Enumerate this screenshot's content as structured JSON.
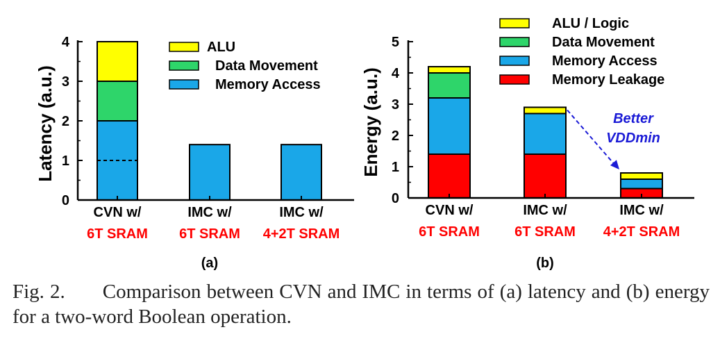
{
  "chart_data": [
    {
      "type": "bar",
      "stacked": true,
      "panel_label": "(a)",
      "ylabel": "Latency (a.u.)",
      "ylim": [
        0,
        4
      ],
      "yticks": [
        0,
        1,
        2,
        3,
        4
      ],
      "categories": [
        {
          "line1": "CVN w/",
          "line2": "6T SRAM"
        },
        {
          "line1": "IMC w/",
          "line2": "6T SRAM"
        },
        {
          "line1": "IMC w/",
          "line2": "4+2T SRAM"
        }
      ],
      "series": [
        {
          "name": "Memory Access",
          "color": "#1AA7E8",
          "values": [
            2.0,
            1.4,
            1.4
          ]
        },
        {
          "name": "Data Movement",
          "color": "#2ED56A",
          "values": [
            1.0,
            0,
            0
          ]
        },
        {
          "name": "ALU",
          "color": "#FFFF00",
          "values": [
            1.0,
            0,
            0
          ]
        }
      ],
      "legend_order": [
        "ALU",
        "Data Movement",
        "Memory Access"
      ],
      "legend_position": "top-right",
      "reference_line": {
        "category": 0,
        "y": 1,
        "style": "dashed"
      }
    },
    {
      "type": "bar",
      "stacked": true,
      "panel_label": "(b)",
      "ylabel": "Energy (a.u.)",
      "ylim": [
        0,
        5
      ],
      "yticks": [
        0,
        1,
        2,
        3,
        4,
        5
      ],
      "categories": [
        {
          "line1": "CVN w/",
          "line2": "6T SRAM"
        },
        {
          "line1": "IMC w/",
          "line2": "6T SRAM"
        },
        {
          "line1": "IMC w/",
          "line2": "4+2T SRAM"
        }
      ],
      "series": [
        {
          "name": "Memory Leakage",
          "color": "#FF0000",
          "values": [
            1.4,
            1.4,
            0.3
          ]
        },
        {
          "name": "Memory Access",
          "color": "#1AA7E8",
          "values": [
            1.8,
            1.3,
            0.3
          ]
        },
        {
          "name": "Data Movement",
          "color": "#2ED56A",
          "values": [
            0.8,
            0,
            0
          ]
        },
        {
          "name": "ALU / Logic",
          "color": "#FFFF00",
          "values": [
            0.2,
            0.2,
            0.2
          ]
        }
      ],
      "legend_order": [
        "ALU / Logic",
        "Data Movement",
        "Memory Access",
        "Memory Leakage"
      ],
      "legend_position": "top-right",
      "annotation": {
        "line1": "Better",
        "line2": "VDDmin",
        "color": "#1A1AD6",
        "from_category": 1,
        "to_category": 2
      }
    }
  ],
  "category_line2_color": "#FF0000",
  "caption": {
    "label": "Fig. 2.",
    "text": "Comparison between CVN and IMC in terms of (a) latency and (b) energy for a two-word Boolean operation."
  }
}
